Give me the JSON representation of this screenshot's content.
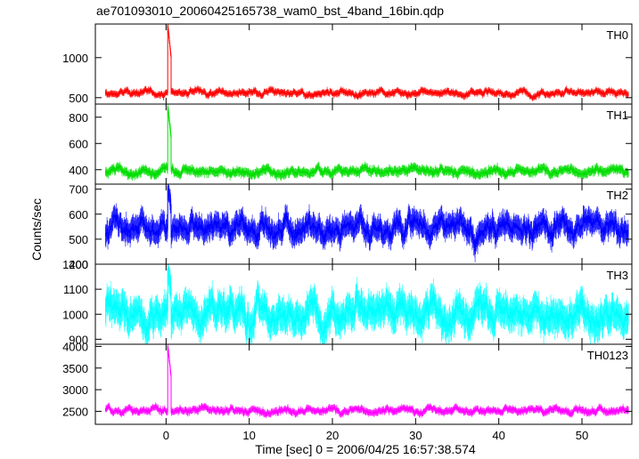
{
  "chart_data": {
    "type": "line",
    "title": "ae701093010_20060425165738_wam0_bst_4band_16bin.qdp",
    "xlabel": "Time [sec] 0 = 2006/04/25 16:57:38.574",
    "ylabel": "Counts/sec",
    "xlim": [
      -8.5,
      56
    ],
    "xticks": [
      0,
      10,
      20,
      30,
      40,
      50
    ],
    "grid": false,
    "legend": "none",
    "burst_time": 0.2,
    "sampling": "16 bins (~0.03 s), light curve with error bars",
    "panels": [
      {
        "name": "TH0",
        "color": "#ff0000",
        "ylim": [
          420,
          1420
        ],
        "yticks": [
          500,
          1000
        ],
        "baseline": 560,
        "noise": 40,
        "peak": 1400,
        "errorbar": 35
      },
      {
        "name": "TH1",
        "color": "#00dd00",
        "ylim": [
          290,
          900
        ],
        "yticks": [
          400,
          600,
          800
        ],
        "baseline": 390,
        "noise": 30,
        "peak": 880,
        "errorbar": 30
      },
      {
        "name": "TH2",
        "color": "#0000ff",
        "ylim": [
          400,
          720
        ],
        "yticks": [
          400,
          500,
          600,
          700
        ],
        "baseline": 545,
        "noise": 45,
        "peak": 710,
        "errorbar": 40
      },
      {
        "name": "TH3",
        "color": "#00ffff",
        "ylim": [
          880,
          1200
        ],
        "yticks": [
          900,
          1000,
          1100,
          1200
        ],
        "baseline": 1010,
        "noise": 55,
        "peak": 1180,
        "errorbar": 55
      },
      {
        "name": "TH0123",
        "color": "#ff00ff",
        "ylim": [
          2200,
          4050
        ],
        "yticks": [
          2500,
          3000,
          3500,
          4000
        ],
        "baseline": 2520,
        "noise": 80,
        "peak": 4000,
        "errorbar": 70
      }
    ]
  }
}
